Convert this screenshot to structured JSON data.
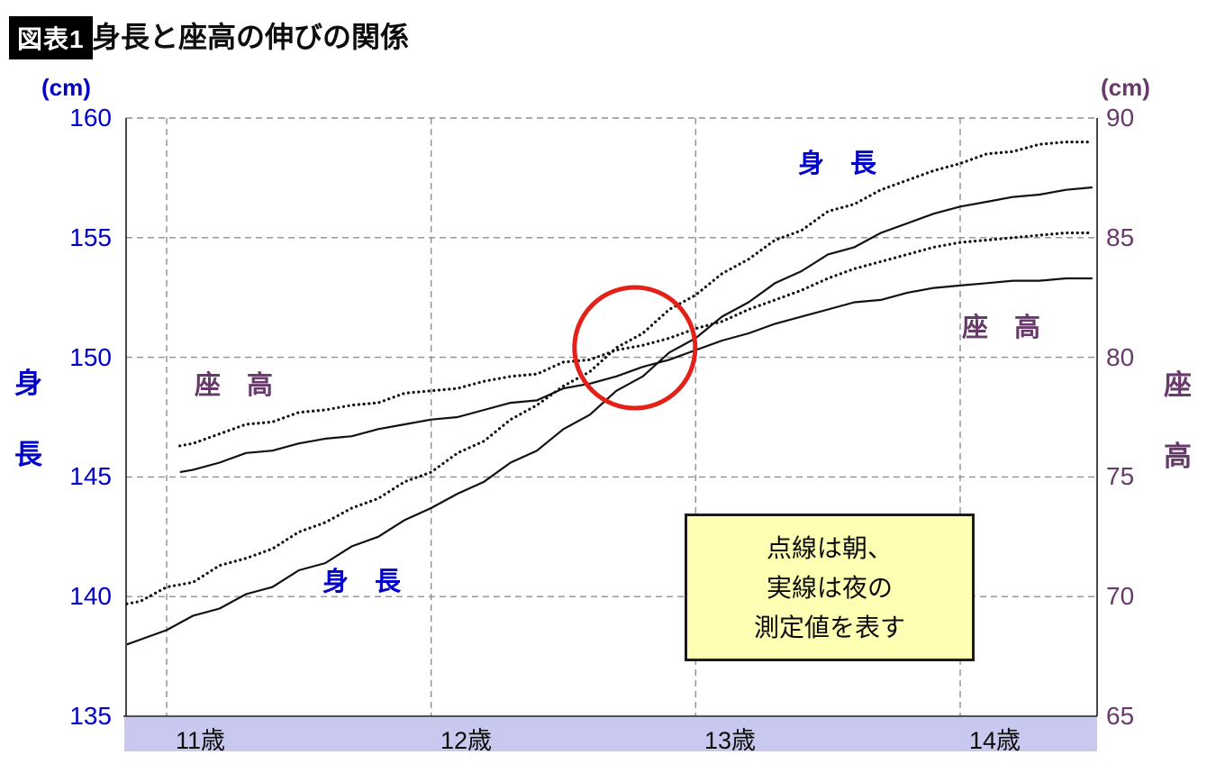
{
  "header": {
    "badge": "図表1",
    "title": "身長と座高の伸びの関係"
  },
  "chart_data": {
    "type": "line",
    "title": "身長と座高の伸びの関係",
    "grid": true,
    "x_axis": {
      "labels": [
        "11歳",
        "12歳",
        "13歳",
        "14歳"
      ],
      "tick_ages": [
        11,
        12,
        13,
        14
      ],
      "range": [
        10.85,
        14.52
      ]
    },
    "left_axis": {
      "title": "身長",
      "title_chars": [
        "身",
        "長"
      ],
      "unit": "(cm)",
      "ticks": [
        "160",
        "155",
        "150",
        "145",
        "140",
        "135"
      ],
      "range": [
        135,
        160
      ],
      "color": "#0000c8"
    },
    "right_axis": {
      "title": "座高",
      "title_chars": [
        "座",
        "高"
      ],
      "unit": "(cm)",
      "ticks": [
        "90",
        "85",
        "80",
        "75",
        "70",
        "65"
      ],
      "range": [
        65,
        90
      ],
      "color": "#683a6b"
    },
    "series": [
      {
        "name": "身長（朝・点線）",
        "axis": "left",
        "style": "dotted",
        "color": "#111111",
        "x": [
          10.85,
          10.9,
          11.0,
          11.1,
          11.2,
          11.3,
          11.4,
          11.5,
          11.6,
          11.7,
          11.8,
          11.9,
          12.0,
          12.1,
          12.2,
          12.3,
          12.4,
          12.5,
          12.6,
          12.7,
          12.8,
          12.9,
          13.0,
          13.1,
          13.2,
          13.3,
          13.4,
          13.5,
          13.6,
          13.7,
          13.8,
          13.9,
          14.0,
          14.1,
          14.2,
          14.3,
          14.4,
          14.5
        ],
        "values": [
          139.7,
          139.8,
          140.4,
          140.6,
          141.3,
          141.6,
          142.0,
          142.7,
          143.1,
          143.7,
          144.1,
          144.8,
          145.2,
          146.0,
          146.5,
          147.4,
          148.0,
          148.8,
          149.4,
          150.4,
          151.0,
          152.0,
          152.6,
          153.5,
          154.1,
          154.9,
          155.3,
          156.1,
          156.4,
          157.0,
          157.4,
          157.8,
          158.1,
          158.5,
          158.6,
          158.9,
          159.0,
          159.0
        ]
      },
      {
        "name": "身長（夜・実線）",
        "axis": "left",
        "style": "solid",
        "color": "#111111",
        "x": [
          10.85,
          10.9,
          11.0,
          11.1,
          11.2,
          11.3,
          11.4,
          11.5,
          11.6,
          11.7,
          11.8,
          11.9,
          12.0,
          12.1,
          12.2,
          12.3,
          12.4,
          12.5,
          12.6,
          12.7,
          12.8,
          12.9,
          13.0,
          13.1,
          13.2,
          13.3,
          13.4,
          13.5,
          13.6,
          13.7,
          13.8,
          13.9,
          14.0,
          14.1,
          14.2,
          14.3,
          14.4,
          14.5
        ],
        "values": [
          138.0,
          138.2,
          138.6,
          139.2,
          139.5,
          140.1,
          140.4,
          141.1,
          141.4,
          142.1,
          142.5,
          143.2,
          143.7,
          144.3,
          144.8,
          145.6,
          146.1,
          147.0,
          147.6,
          148.6,
          149.2,
          150.2,
          150.8,
          151.7,
          152.3,
          153.1,
          153.6,
          154.3,
          154.6,
          155.2,
          155.6,
          156.0,
          156.3,
          156.5,
          156.7,
          156.8,
          157.0,
          157.1
        ]
      },
      {
        "name": "座高（朝・点線）",
        "axis": "right",
        "style": "dotted",
        "color": "#111111",
        "x": [
          11.05,
          11.1,
          11.2,
          11.3,
          11.4,
          11.5,
          11.6,
          11.7,
          11.8,
          11.9,
          12.0,
          12.1,
          12.2,
          12.3,
          12.4,
          12.5,
          12.6,
          12.7,
          12.8,
          12.9,
          13.0,
          13.1,
          13.2,
          13.3,
          13.4,
          13.5,
          13.6,
          13.7,
          13.8,
          13.9,
          14.0,
          14.1,
          14.2,
          14.3,
          14.4,
          14.5
        ],
        "values": [
          76.3,
          76.4,
          76.8,
          77.2,
          77.3,
          77.7,
          77.8,
          78.0,
          78.1,
          78.5,
          78.6,
          78.7,
          79.0,
          79.2,
          79.3,
          79.8,
          79.9,
          80.3,
          80.5,
          80.8,
          81.2,
          81.5,
          82.0,
          82.4,
          82.8,
          83.3,
          83.7,
          84.0,
          84.3,
          84.6,
          84.8,
          84.9,
          85.0,
          85.1,
          85.2,
          85.2
        ]
      },
      {
        "name": "座高（夜・実線）",
        "axis": "right",
        "style": "solid",
        "color": "#111111",
        "x": [
          11.05,
          11.1,
          11.2,
          11.3,
          11.4,
          11.5,
          11.6,
          11.7,
          11.8,
          11.9,
          12.0,
          12.1,
          12.2,
          12.3,
          12.4,
          12.5,
          12.6,
          12.7,
          12.8,
          12.9,
          13.0,
          13.1,
          13.2,
          13.3,
          13.4,
          13.5,
          13.6,
          13.7,
          13.8,
          13.9,
          14.0,
          14.1,
          14.2,
          14.3,
          14.4,
          14.5
        ],
        "values": [
          75.2,
          75.3,
          75.6,
          76.0,
          76.1,
          76.4,
          76.6,
          76.7,
          77.0,
          77.2,
          77.4,
          77.5,
          77.8,
          78.1,
          78.2,
          78.7,
          78.9,
          79.2,
          79.6,
          79.9,
          80.3,
          80.7,
          81.0,
          81.4,
          81.7,
          82.0,
          82.3,
          82.4,
          82.7,
          82.9,
          83.0,
          83.1,
          83.2,
          83.2,
          83.3,
          83.3
        ]
      }
    ],
    "series_labels": {
      "height_top": "身　長",
      "height_bottom": "身　長",
      "sitting_left": "座　高",
      "sitting_right": "座　高"
    },
    "annotations": {
      "circle": {
        "age": 12.77,
        "value": 150.4,
        "radius_px": 67,
        "color": "#e32119"
      },
      "note": {
        "lines": [
          "点線は朝、",
          "実線は夜の",
          "測定値を表す"
        ],
        "bg": "#ffffb3"
      }
    }
  },
  "colors": {
    "height_axis": "#0000c8",
    "sitting_axis": "#683a6b",
    "band": "#c9c9ef",
    "note_bg": "#ffffb3",
    "circle": "#e32119"
  }
}
